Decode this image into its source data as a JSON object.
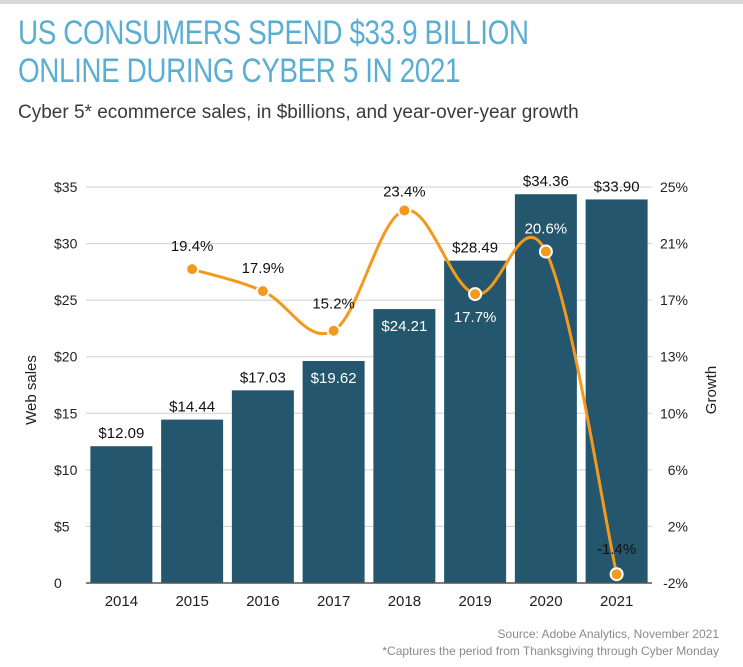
{
  "title": "US CONSUMERS SPEND $33.9 BILLION ONLINE DURING CYBER 5 IN 2021",
  "subtitle": "Cyber 5* ecommerce sales, in $billions, and year-over-year growth",
  "source": "Source: Adobe Analytics, November 2021",
  "footnote": "*Captures the period from Thanksgiving through Cyber Monday",
  "colors": {
    "bar": "#24576d",
    "line": "#f39a1e",
    "title": "#5aaed3"
  },
  "chart_data": {
    "type": "bar",
    "categories": [
      "2014",
      "2015",
      "2016",
      "2017",
      "2018",
      "2019",
      "2020",
      "2021"
    ],
    "series": [
      {
        "type": "bar",
        "values": [
          12.09,
          14.44,
          17.03,
          19.62,
          24.21,
          28.49,
          34.36,
          33.9
        ],
        "labels": [
          "$12.09",
          "$14.44",
          "$17.03",
          "$19.62",
          "$24.21",
          "$28.49",
          "$34.36",
          "$33.90"
        ],
        "axis": "left"
      },
      {
        "type": "line",
        "values": [
          null,
          19.4,
          17.9,
          15.2,
          23.4,
          17.7,
          20.6,
          -1.4
        ],
        "labels": [
          "",
          "19.4%",
          "17.9%",
          "15.2%",
          "23.4%",
          "17.7%",
          "20.6%",
          "-1.4%"
        ],
        "axis": "right"
      }
    ],
    "ylabel": "Web sales",
    "y2label": "Growth",
    "ylim": [
      0,
      35
    ],
    "y2lim": [
      -2,
      25
    ],
    "yticks": [
      0,
      5,
      10,
      15,
      20,
      25,
      30,
      35
    ],
    "yticklabels": [
      "0",
      "$5",
      "$10",
      "$15",
      "$20",
      "$25",
      "$30",
      "$35"
    ],
    "y2ticks": [
      -2,
      2,
      6,
      10,
      13,
      17,
      21,
      25
    ],
    "y2ticklabels": [
      "-2%",
      "2%",
      "6%",
      "10%",
      "13%",
      "17%",
      "21%",
      "25%"
    ],
    "grid": true
  }
}
